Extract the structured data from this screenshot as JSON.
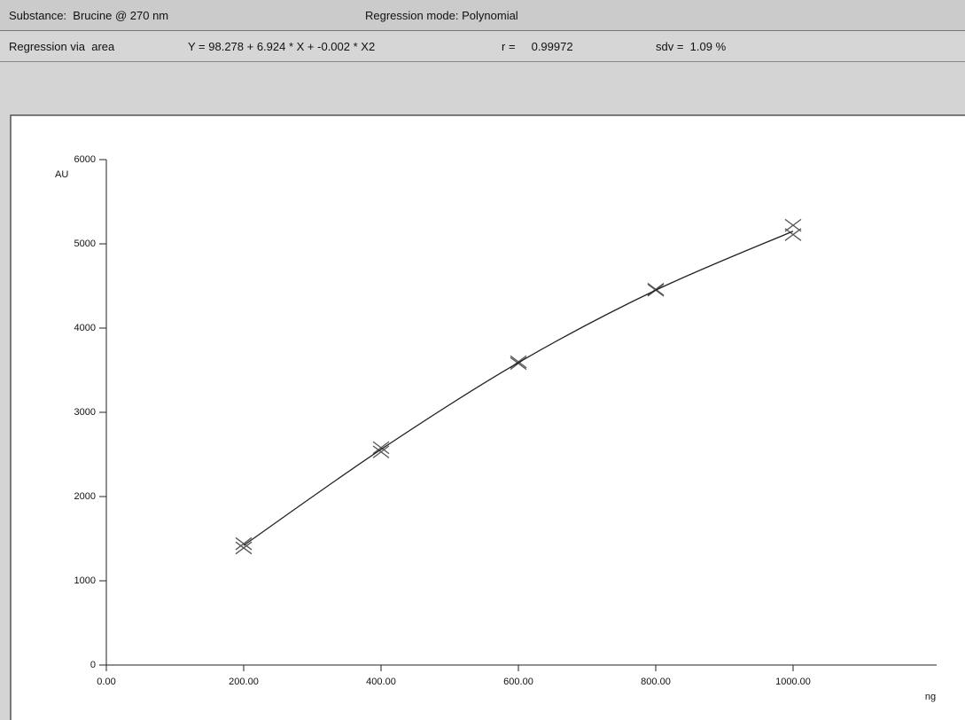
{
  "header": {
    "substance": "Substance:  Brucine @ 270 nm",
    "regression_mode": "Regression mode: Polynomial",
    "regression_via": "Regression via  area",
    "equation": "Y = 98.278 + 6.924 * X + -0.002 * X2",
    "r": "r =     0.99972",
    "sdv": "sdv =  1.09 %"
  },
  "chart_data": {
    "type": "scatter",
    "x_label": "ng",
    "y_label": "AU",
    "xlim": [
      0,
      1200
    ],
    "ylim": [
      0,
      6000
    ],
    "xticks": [
      {
        "value": 0,
        "label": "0.00"
      },
      {
        "value": 200,
        "label": "200.00"
      },
      {
        "value": 400,
        "label": "400.00"
      },
      {
        "value": 600,
        "label": "600.00"
      },
      {
        "value": 800,
        "label": "800.00"
      },
      {
        "value": 1000,
        "label": "1000.00"
      }
    ],
    "yticks": [
      0,
      1000,
      2000,
      3000,
      4000,
      5000,
      6000
    ],
    "series": [
      {
        "mode": "markers",
        "color": "#555555",
        "x": [
          200,
          200,
          400,
          400,
          600,
          600,
          800,
          800,
          1000,
          1000
        ],
        "values": [
          1440,
          1390,
          2580,
          2530,
          3600,
          3580,
          4460,
          4450,
          5220,
          5110
        ]
      },
      {
        "mode": "line",
        "color": "#222222",
        "x": [
          200,
          400,
          600,
          800,
          1000
        ],
        "values": [
          1420,
          2560,
          3590,
          4450,
          5150
        ]
      }
    ]
  }
}
